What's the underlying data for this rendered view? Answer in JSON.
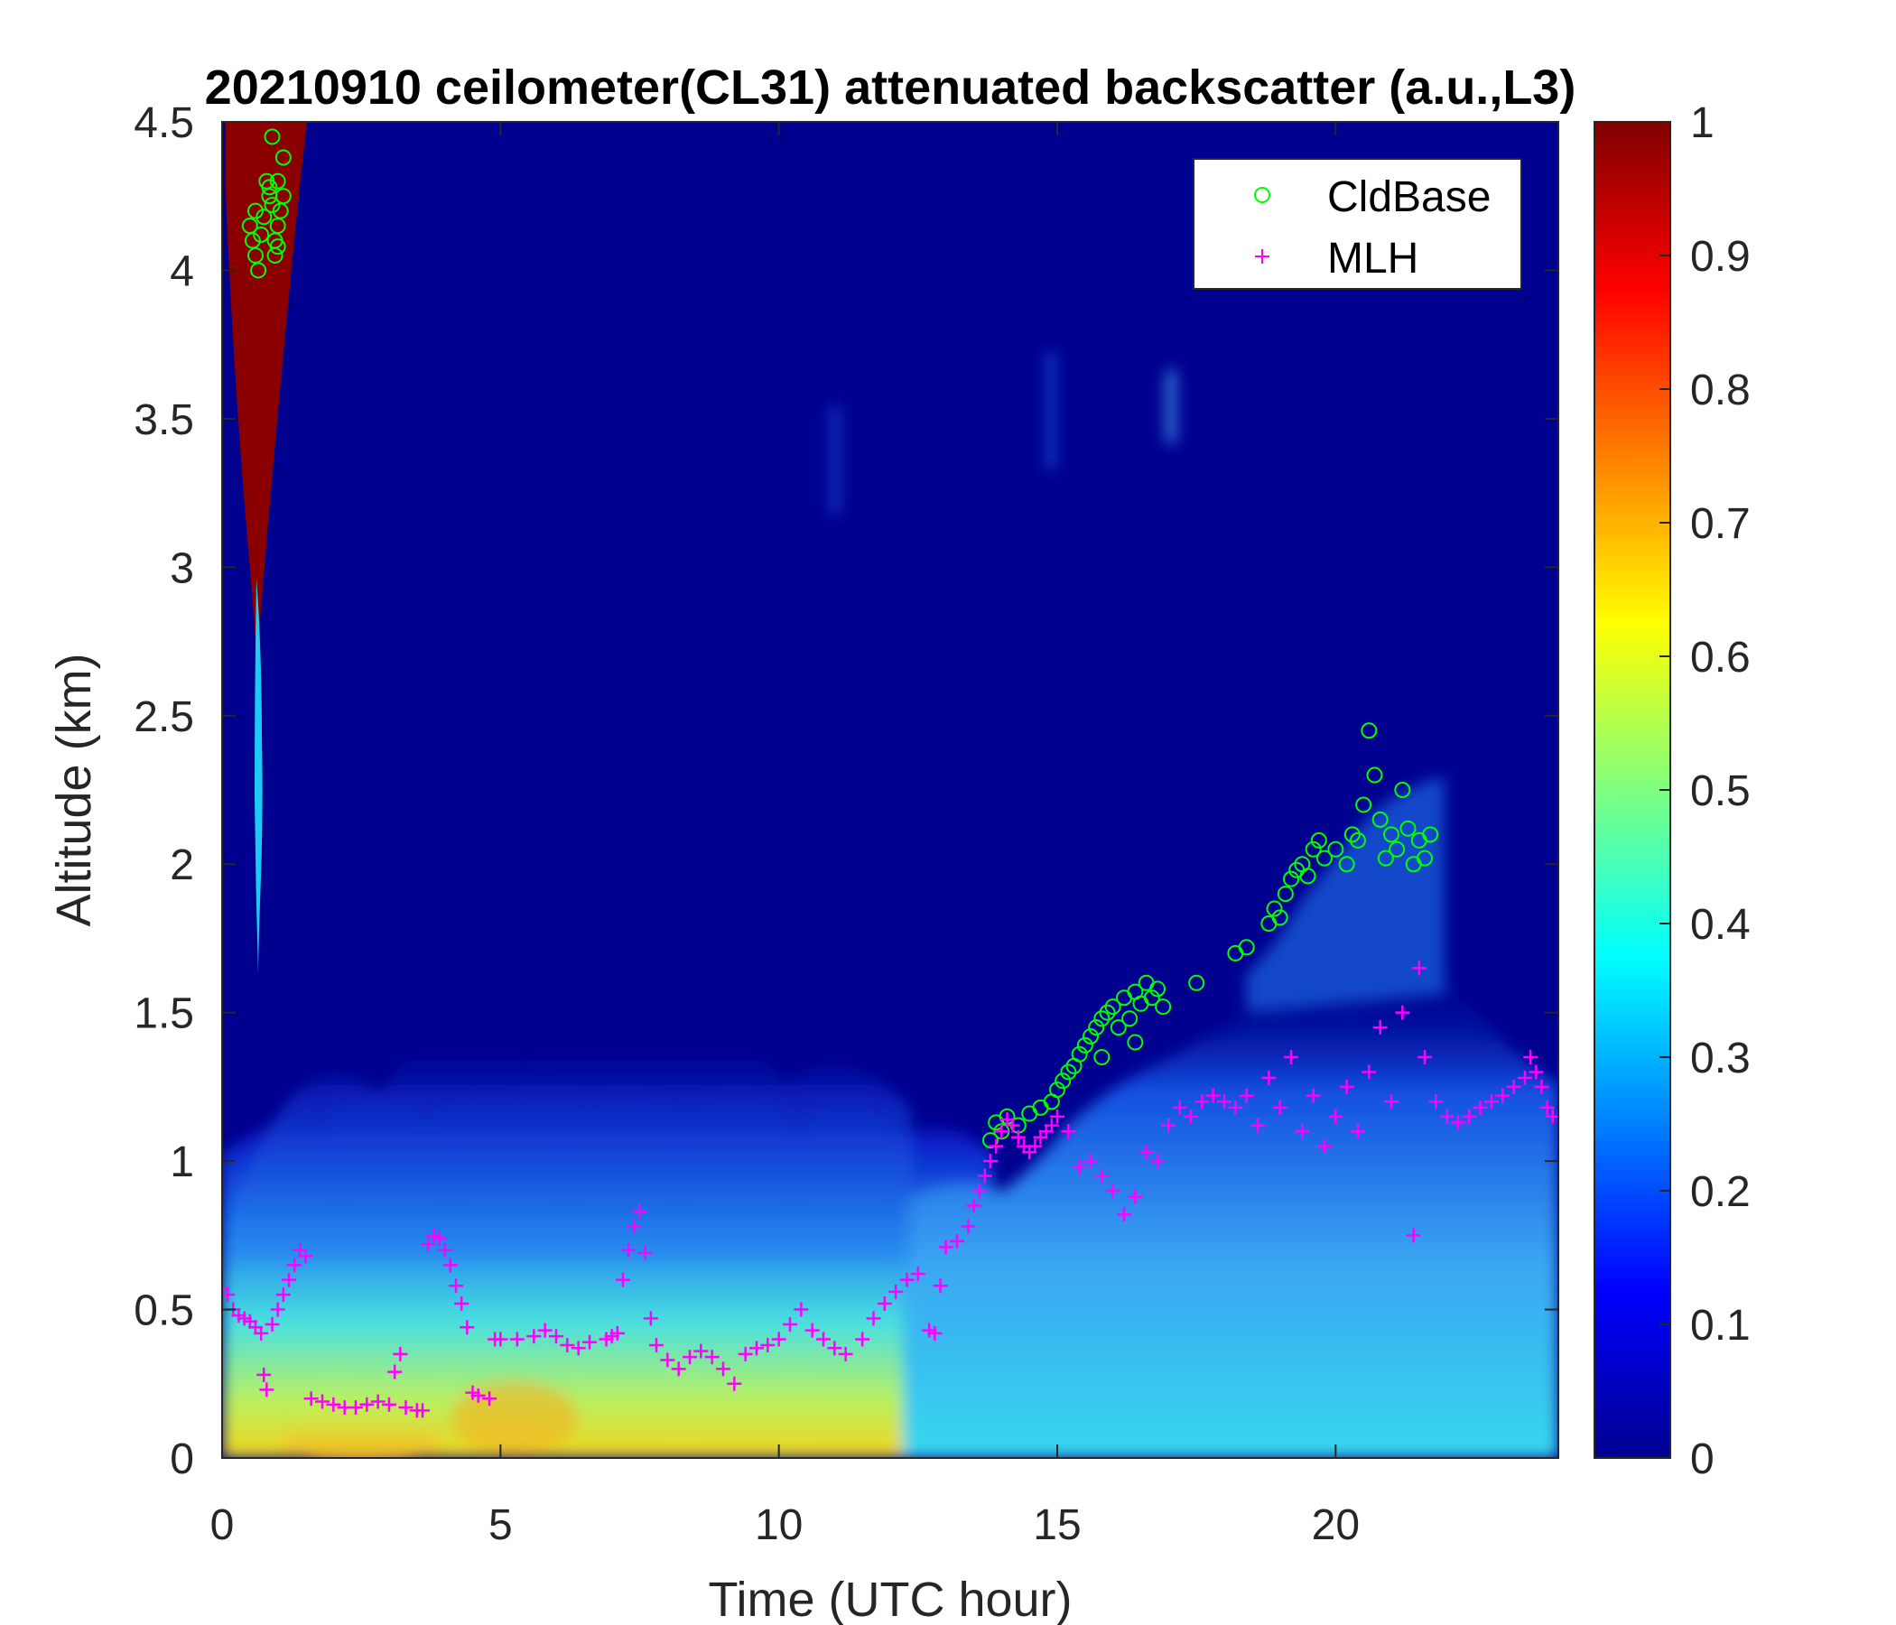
{
  "chart_data": {
    "type": "heatmap",
    "title": "20210910 ceilometer(CL31) attenuated backscatter (a.u.,L3)",
    "xlabel": "Time (UTC hour)",
    "ylabel": "Altitude (km)",
    "xlim": [
      0,
      24
    ],
    "ylim": [
      0,
      4.5
    ],
    "x_ticks": [
      "0",
      "5",
      "10",
      "15",
      "20"
    ],
    "y_ticks": [
      "0",
      "0.5",
      "1",
      "1.5",
      "2",
      "2.5",
      "3",
      "3.5",
      "4",
      "4.5"
    ],
    "colorbar": {
      "range": [
        0,
        1
      ],
      "colormap": "jet",
      "ticks": [
        "0",
        "0.1",
        "0.2",
        "0.3",
        "0.4",
        "0.5",
        "0.6",
        "0.7",
        "0.8",
        "0.9",
        "1"
      ]
    },
    "legend": {
      "placement": "top-right",
      "entries": [
        {
          "name": "CldBase",
          "marker": "circle",
          "color": "#00ff00"
        },
        {
          "name": "MLH",
          "marker": "plus",
          "color": "#ff00ff"
        }
      ]
    },
    "background_color": "#00008f",
    "series": [
      {
        "name": "CldBase",
        "color": "#00ff00",
        "points": [
          [
            0.5,
            4.15
          ],
          [
            0.55,
            4.1
          ],
          [
            0.6,
            4.05
          ],
          [
            0.65,
            4.0
          ],
          [
            0.6,
            4.2
          ],
          [
            0.7,
            4.12
          ],
          [
            0.8,
            4.3
          ],
          [
            0.85,
            4.25
          ],
          [
            0.9,
            4.45
          ],
          [
            0.9,
            4.22
          ],
          [
            0.95,
            4.1
          ],
          [
            1.0,
            4.3
          ],
          [
            1.05,
            4.2
          ],
          [
            1.1,
            4.38
          ],
          [
            0.95,
            4.05
          ],
          [
            1.0,
            4.15
          ],
          [
            0.85,
            4.28
          ],
          [
            1.1,
            4.25
          ],
          [
            0.75,
            4.18
          ],
          [
            1.0,
            4.08
          ],
          [
            13.8,
            1.07
          ],
          [
            13.9,
            1.13
          ],
          [
            14.0,
            1.1
          ],
          [
            14.1,
            1.15
          ],
          [
            14.3,
            1.12
          ],
          [
            14.5,
            1.16
          ],
          [
            14.7,
            1.18
          ],
          [
            14.9,
            1.2
          ],
          [
            15.0,
            1.24
          ],
          [
            15.1,
            1.27
          ],
          [
            15.2,
            1.3
          ],
          [
            15.3,
            1.32
          ],
          [
            15.4,
            1.36
          ],
          [
            15.5,
            1.39
          ],
          [
            15.6,
            1.42
          ],
          [
            15.7,
            1.45
          ],
          [
            15.8,
            1.48
          ],
          [
            15.9,
            1.5
          ],
          [
            16.0,
            1.52
          ],
          [
            16.1,
            1.45
          ],
          [
            16.2,
            1.55
          ],
          [
            16.3,
            1.48
          ],
          [
            16.4,
            1.57
          ],
          [
            16.5,
            1.53
          ],
          [
            16.6,
            1.6
          ],
          [
            16.7,
            1.55
          ],
          [
            16.8,
            1.58
          ],
          [
            16.9,
            1.52
          ],
          [
            16.4,
            1.4
          ],
          [
            15.8,
            1.35
          ],
          [
            17.5,
            1.6
          ],
          [
            18.2,
            1.7
          ],
          [
            18.4,
            1.72
          ],
          [
            18.8,
            1.8
          ],
          [
            18.9,
            1.85
          ],
          [
            19.0,
            1.82
          ],
          [
            19.1,
            1.9
          ],
          [
            19.2,
            1.95
          ],
          [
            19.3,
            1.98
          ],
          [
            19.4,
            2.0
          ],
          [
            19.5,
            1.96
          ],
          [
            19.6,
            2.05
          ],
          [
            19.7,
            2.08
          ],
          [
            19.8,
            2.02
          ],
          [
            20.0,
            2.05
          ],
          [
            20.2,
            2.0
          ],
          [
            20.4,
            2.08
          ],
          [
            20.5,
            2.2
          ],
          [
            20.6,
            2.45
          ],
          [
            20.7,
            2.3
          ],
          [
            20.8,
            2.15
          ],
          [
            21.0,
            2.1
          ],
          [
            21.1,
            2.05
          ],
          [
            21.2,
            2.25
          ],
          [
            21.3,
            2.12
          ],
          [
            21.4,
            2.0
          ],
          [
            21.5,
            2.08
          ],
          [
            21.6,
            2.02
          ],
          [
            20.9,
            2.02
          ],
          [
            20.3,
            2.1
          ],
          [
            21.7,
            2.1
          ]
        ]
      },
      {
        "name": "MLH",
        "color": "#ff00ff",
        "points": [
          [
            0.0,
            0.57
          ],
          [
            0.1,
            0.55
          ],
          [
            0.2,
            0.5
          ],
          [
            0.3,
            0.48
          ],
          [
            0.4,
            0.47
          ],
          [
            0.5,
            0.46
          ],
          [
            0.6,
            0.44
          ],
          [
            0.7,
            0.42
          ],
          [
            0.75,
            0.28
          ],
          [
            0.8,
            0.23
          ],
          [
            0.9,
            0.45
          ],
          [
            1.0,
            0.5
          ],
          [
            1.1,
            0.55
          ],
          [
            1.2,
            0.6
          ],
          [
            1.3,
            0.65
          ],
          [
            1.4,
            0.7
          ],
          [
            1.5,
            0.68
          ],
          [
            1.6,
            0.2
          ],
          [
            1.8,
            0.19
          ],
          [
            2.0,
            0.18
          ],
          [
            2.2,
            0.17
          ],
          [
            2.4,
            0.17
          ],
          [
            2.6,
            0.18
          ],
          [
            2.8,
            0.19
          ],
          [
            3.0,
            0.18
          ],
          [
            3.1,
            0.29
          ],
          [
            3.2,
            0.35
          ],
          [
            3.3,
            0.17
          ],
          [
            3.5,
            0.16
          ],
          [
            3.6,
            0.16
          ],
          [
            3.7,
            0.72
          ],
          [
            3.8,
            0.75
          ],
          [
            3.9,
            0.74
          ],
          [
            4.0,
            0.7
          ],
          [
            4.1,
            0.65
          ],
          [
            4.2,
            0.58
          ],
          [
            4.3,
            0.52
          ],
          [
            4.4,
            0.44
          ],
          [
            4.5,
            0.22
          ],
          [
            4.6,
            0.21
          ],
          [
            4.8,
            0.2
          ],
          [
            4.9,
            0.4
          ],
          [
            5.0,
            0.4
          ],
          [
            5.3,
            0.4
          ],
          [
            5.6,
            0.41
          ],
          [
            5.8,
            0.43
          ],
          [
            6.0,
            0.41
          ],
          [
            6.2,
            0.38
          ],
          [
            6.4,
            0.37
          ],
          [
            6.6,
            0.39
          ],
          [
            6.9,
            0.4
          ],
          [
            7.0,
            0.41
          ],
          [
            7.1,
            0.42
          ],
          [
            7.2,
            0.6
          ],
          [
            7.3,
            0.7
          ],
          [
            7.4,
            0.78
          ],
          [
            7.5,
            0.83
          ],
          [
            7.6,
            0.69
          ],
          [
            7.7,
            0.47
          ],
          [
            7.8,
            0.38
          ],
          [
            8.0,
            0.33
          ],
          [
            8.2,
            0.3
          ],
          [
            8.4,
            0.34
          ],
          [
            8.6,
            0.36
          ],
          [
            8.8,
            0.34
          ],
          [
            9.0,
            0.3
          ],
          [
            9.2,
            0.25
          ],
          [
            9.4,
            0.35
          ],
          [
            9.6,
            0.37
          ],
          [
            9.8,
            0.38
          ],
          [
            10.0,
            0.4
          ],
          [
            10.2,
            0.45
          ],
          [
            10.4,
            0.5
          ],
          [
            10.6,
            0.43
          ],
          [
            10.8,
            0.4
          ],
          [
            11.0,
            0.37
          ],
          [
            11.2,
            0.35
          ],
          [
            11.5,
            0.4
          ],
          [
            11.7,
            0.47
          ],
          [
            11.9,
            0.52
          ],
          [
            12.1,
            0.56
          ],
          [
            12.3,
            0.6
          ],
          [
            12.5,
            0.62
          ],
          [
            12.7,
            0.43
          ],
          [
            12.8,
            0.42
          ],
          [
            12.9,
            0.58
          ],
          [
            13.0,
            0.71
          ],
          [
            13.2,
            0.73
          ],
          [
            13.4,
            0.78
          ],
          [
            13.5,
            0.85
          ],
          [
            13.6,
            0.9
          ],
          [
            13.7,
            0.95
          ],
          [
            13.8,
            1.0
          ],
          [
            13.9,
            1.05
          ],
          [
            14.0,
            1.1
          ],
          [
            14.1,
            1.14
          ],
          [
            14.2,
            1.12
          ],
          [
            14.3,
            1.08
          ],
          [
            14.4,
            1.05
          ],
          [
            14.5,
            1.03
          ],
          [
            14.6,
            1.05
          ],
          [
            14.7,
            1.08
          ],
          [
            14.8,
            1.1
          ],
          [
            14.9,
            1.12
          ],
          [
            15.0,
            1.15
          ],
          [
            15.2,
            1.1
          ],
          [
            15.4,
            0.98
          ],
          [
            15.6,
            1.0
          ],
          [
            15.8,
            0.95
          ],
          [
            16.0,
            0.9
          ],
          [
            16.2,
            0.82
          ],
          [
            16.4,
            0.88
          ],
          [
            16.6,
            1.03
          ],
          [
            16.8,
            1.0
          ],
          [
            17.0,
            1.12
          ],
          [
            17.2,
            1.18
          ],
          [
            17.4,
            1.15
          ],
          [
            17.6,
            1.2
          ],
          [
            17.8,
            1.22
          ],
          [
            18.0,
            1.2
          ],
          [
            18.2,
            1.18
          ],
          [
            18.4,
            1.22
          ],
          [
            18.6,
            1.12
          ],
          [
            18.8,
            1.28
          ],
          [
            19.0,
            1.18
          ],
          [
            19.2,
            1.35
          ],
          [
            19.4,
            1.1
          ],
          [
            19.6,
            1.22
          ],
          [
            19.8,
            1.05
          ],
          [
            20.0,
            1.15
          ],
          [
            20.2,
            1.25
          ],
          [
            20.4,
            1.1
          ],
          [
            20.6,
            1.3
          ],
          [
            20.8,
            1.45
          ],
          [
            21.0,
            1.2
          ],
          [
            21.2,
            1.5
          ],
          [
            21.4,
            0.75
          ],
          [
            21.5,
            1.65
          ],
          [
            21.6,
            1.35
          ],
          [
            21.8,
            1.2
          ],
          [
            22.0,
            1.15
          ],
          [
            22.2,
            1.13
          ],
          [
            22.4,
            1.15
          ],
          [
            22.6,
            1.18
          ],
          [
            22.8,
            1.2
          ],
          [
            23.0,
            1.22
          ],
          [
            23.2,
            1.25
          ],
          [
            23.4,
            1.28
          ],
          [
            23.5,
            1.35
          ],
          [
            23.6,
            1.3
          ],
          [
            23.7,
            1.25
          ],
          [
            23.8,
            1.18
          ],
          [
            23.9,
            1.15
          ],
          [
            24.0,
            1.15
          ]
        ]
      }
    ]
  }
}
